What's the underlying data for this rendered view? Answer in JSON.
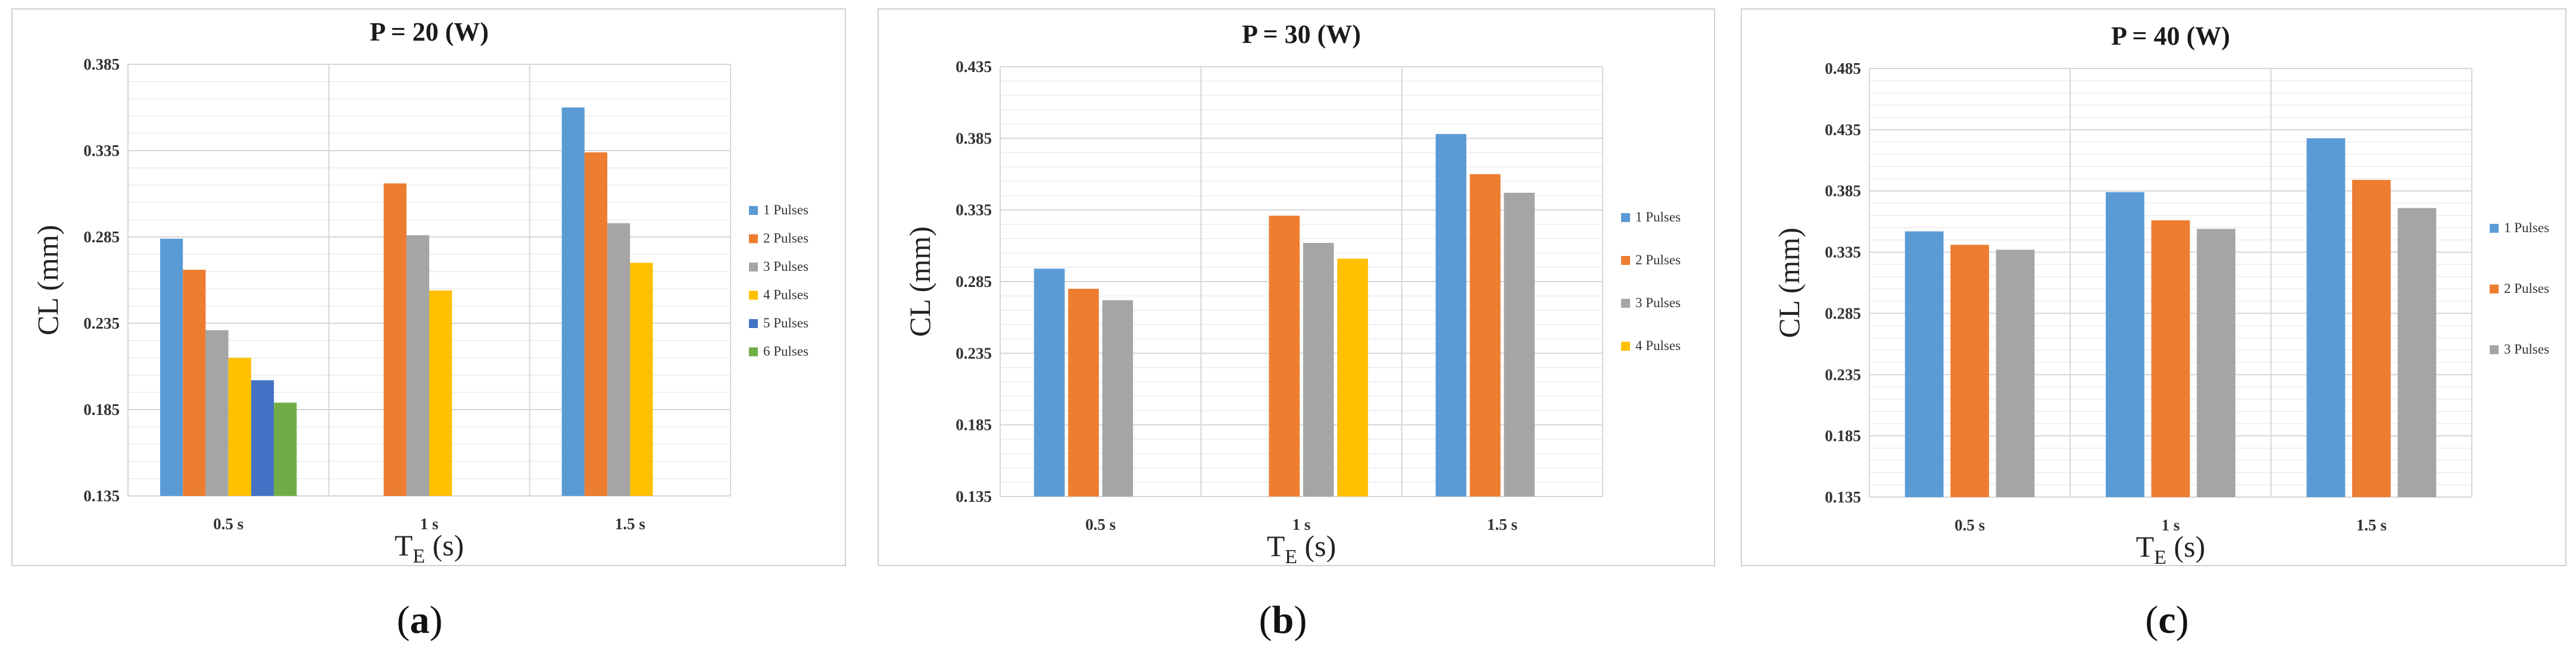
{
  "chart_data": [
    {
      "type": "bar",
      "title": "P = 20 (W)",
      "caption_letter": "a",
      "ylabel": "CL (mm)",
      "xlabel_main": "T",
      "xlabel_sub": "E",
      "xlabel_unit": " (s)",
      "ylim": [
        0.135,
        0.385
      ],
      "yticks": [
        "0.135",
        "0.185",
        "0.235",
        "0.285",
        "0.335",
        "0.385"
      ],
      "categories": [
        "0.5 s",
        "1 s",
        "1.5 s"
      ],
      "series": [
        {
          "name": "1 Pulses",
          "values": [
            0.284,
            null,
            0.36
          ]
        },
        {
          "name": "2 Pulses",
          "values": [
            0.266,
            0.316,
            0.334
          ]
        },
        {
          "name": "3 Pulses",
          "values": [
            0.231,
            0.286,
            0.293
          ]
        },
        {
          "name": "4 Pulses",
          "values": [
            0.215,
            0.254,
            0.27
          ]
        },
        {
          "name": "5 Pulses",
          "values": [
            0.202,
            null,
            null
          ]
        },
        {
          "name": "6 Pulses",
          "values": [
            0.189,
            null,
            null
          ]
        }
      ]
    },
    {
      "type": "bar",
      "title": "P = 30 (W)",
      "caption_letter": "b",
      "ylabel": "CL (mm)",
      "xlabel_main": "T",
      "xlabel_sub": "E",
      "xlabel_unit": " (s)",
      "ylim": [
        0.135,
        0.435
      ],
      "yticks": [
        "0.135",
        "0.185",
        "0.235",
        "0.285",
        "0.335",
        "0.385",
        "0.435"
      ],
      "categories": [
        "0.5 s",
        "1 s",
        "1.5 s"
      ],
      "series": [
        {
          "name": "1 Pulses",
          "values": [
            0.294,
            null,
            0.388
          ]
        },
        {
          "name": "2 Pulses",
          "values": [
            0.28,
            0.331,
            0.36
          ]
        },
        {
          "name": "3 Pulses",
          "values": [
            0.272,
            0.312,
            0.347
          ]
        },
        {
          "name": "4 Pulses",
          "values": [
            null,
            0.301,
            null
          ]
        }
      ]
    },
    {
      "type": "bar",
      "title": "P = 40 (W)",
      "caption_letter": "c",
      "ylabel": "CL (mm)",
      "xlabel_main": "T",
      "xlabel_sub": "E",
      "xlabel_unit": " (s)",
      "ylim": [
        0.135,
        0.485
      ],
      "yticks": [
        "0.135",
        "0.185",
        "0.235",
        "0.285",
        "0.335",
        "0.385",
        "0.435",
        "0.485"
      ],
      "categories": [
        "0.5 s",
        "1 s",
        "1.5 s"
      ],
      "series": [
        {
          "name": "1 Pulses",
          "values": [
            0.352,
            0.384,
            0.428
          ]
        },
        {
          "name": "2 Pulses",
          "values": [
            0.341,
            0.361,
            0.394
          ]
        },
        {
          "name": "3 Pulses",
          "values": [
            0.337,
            0.354,
            0.371
          ]
        }
      ]
    }
  ],
  "colors": {
    "1 Pulses": "#5b9bd5",
    "2 Pulses": "#ed7d31",
    "3 Pulses": "#a5a5a5",
    "4 Pulses": "#ffc000",
    "5 Pulses": "#4472c4",
    "6 Pulses": "#70ad47"
  }
}
